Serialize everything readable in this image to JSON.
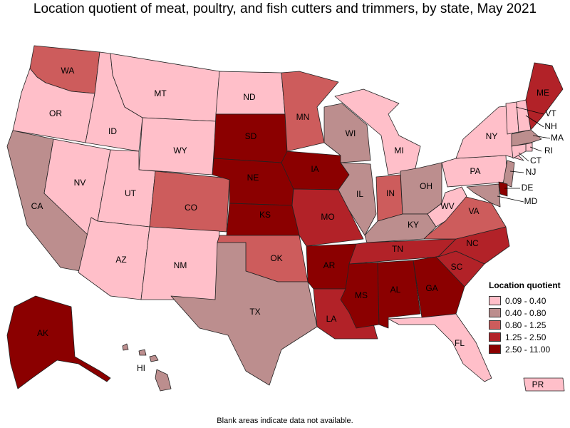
{
  "title": "Location quotient of meat, poultry, and fish cutters and trimmers, by state, May 2021",
  "footnote": "Blank areas indicate data not available.",
  "legend": {
    "title": "Location quotient",
    "items": [
      {
        "label": "0.09 - 0.40",
        "color": "#FFBFC9"
      },
      {
        "label": "0.40 - 0.80",
        "color": "#BC8E8E"
      },
      {
        "label": "0.80 - 1.25",
        "color": "#CD5C5C"
      },
      {
        "label": "1.25 - 2.50",
        "color": "#B22228"
      },
      {
        "label": "2.50 - 11.00",
        "color": "#8B0000"
      }
    ]
  },
  "states": [
    {
      "code": "WA",
      "class": 2
    },
    {
      "code": "OR",
      "class": 0
    },
    {
      "code": "CA",
      "class": 1
    },
    {
      "code": "ID",
      "class": 0
    },
    {
      "code": "NV",
      "class": 0
    },
    {
      "code": "MT",
      "class": 0
    },
    {
      "code": "WY",
      "class": 0
    },
    {
      "code": "UT",
      "class": 0
    },
    {
      "code": "AZ",
      "class": 0
    },
    {
      "code": "CO",
      "class": 2
    },
    {
      "code": "NM",
      "class": 0
    },
    {
      "code": "ND",
      "class": 0
    },
    {
      "code": "SD",
      "class": 4
    },
    {
      "code": "NE",
      "class": 4
    },
    {
      "code": "KS",
      "class": 4
    },
    {
      "code": "OK",
      "class": 2
    },
    {
      "code": "TX",
      "class": 1
    },
    {
      "code": "MN",
      "class": 2
    },
    {
      "code": "IA",
      "class": 4
    },
    {
      "code": "MO",
      "class": 3
    },
    {
      "code": "AR",
      "class": 4
    },
    {
      "code": "LA",
      "class": 3
    },
    {
      "code": "WI",
      "class": 1
    },
    {
      "code": "IL",
      "class": 1
    },
    {
      "code": "MI",
      "class": 0
    },
    {
      "code": "IN",
      "class": 2
    },
    {
      "code": "OH",
      "class": 1
    },
    {
      "code": "KY",
      "class": 1
    },
    {
      "code": "TN",
      "class": 3
    },
    {
      "code": "MS",
      "class": 4
    },
    {
      "code": "AL",
      "class": 4
    },
    {
      "code": "GA",
      "class": 4
    },
    {
      "code": "FL",
      "class": 0
    },
    {
      "code": "SC",
      "class": 3
    },
    {
      "code": "NC",
      "class": 3
    },
    {
      "code": "VA",
      "class": 2
    },
    {
      "code": "WV",
      "class": 0
    },
    {
      "code": "PA",
      "class": 0
    },
    {
      "code": "NY",
      "class": 0
    },
    {
      "code": "VT",
      "class": 0
    },
    {
      "code": "NH",
      "class": 0
    },
    {
      "code": "ME",
      "class": 3
    },
    {
      "code": "MA",
      "class": 1
    },
    {
      "code": "RI",
      "class": 0
    },
    {
      "code": "CT",
      "class": 0
    },
    {
      "code": "NJ",
      "class": 1
    },
    {
      "code": "DE",
      "class": 4
    },
    {
      "code": "MD",
      "class": 1
    },
    {
      "code": "AK",
      "class": 4
    },
    {
      "code": "HI",
      "class": 1
    },
    {
      "code": "PR",
      "class": 0
    }
  ]
}
